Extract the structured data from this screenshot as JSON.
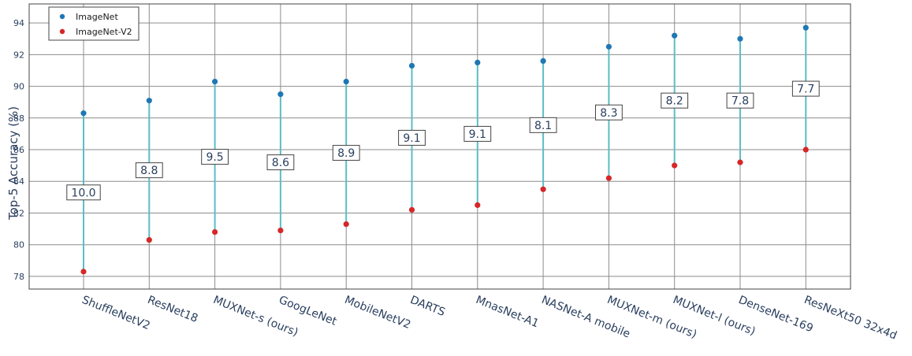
{
  "chart_data": {
    "type": "scatter",
    "categories": [
      "ShuffleNetV2",
      "ResNet18",
      "MUXNet-s (ours)",
      "GoogLeNet",
      "MobileNetV2",
      "DARTS",
      "MnasNet-A1",
      "NASNet-A mobile",
      "MUXNet-m (ours)",
      "MUXNet-l (ours)",
      "DenseNet-169",
      "ResNeXt50 32x4d"
    ],
    "series": [
      {
        "name": "ImageNet",
        "color": "#1f77b4",
        "values": [
          88.3,
          89.1,
          90.3,
          89.5,
          90.3,
          91.3,
          91.5,
          91.6,
          92.5,
          93.2,
          93.0,
          93.7
        ]
      },
      {
        "name": "ImageNet-V2",
        "color": "#d62728",
        "values": [
          78.3,
          80.3,
          80.8,
          80.9,
          81.3,
          82.2,
          82.5,
          83.5,
          84.2,
          85.0,
          85.2,
          86.0
        ]
      }
    ],
    "gap_labels": [
      "10.0",
      "8.8",
      "9.5",
      "8.6",
      "8.9",
      "9.1",
      "9.1",
      "8.1",
      "8.3",
      "8.2",
      "7.8",
      "7.7"
    ],
    "connector_color": "#5dbdc6",
    "ylabel": "Top-5 Accuracy (%)",
    "xlabel": "",
    "yticks": [
      78,
      80,
      82,
      84,
      86,
      88,
      90,
      92,
      94
    ],
    "ylim": [
      77.2,
      95.2
    ],
    "grid": true,
    "legend_position": "top-left"
  }
}
